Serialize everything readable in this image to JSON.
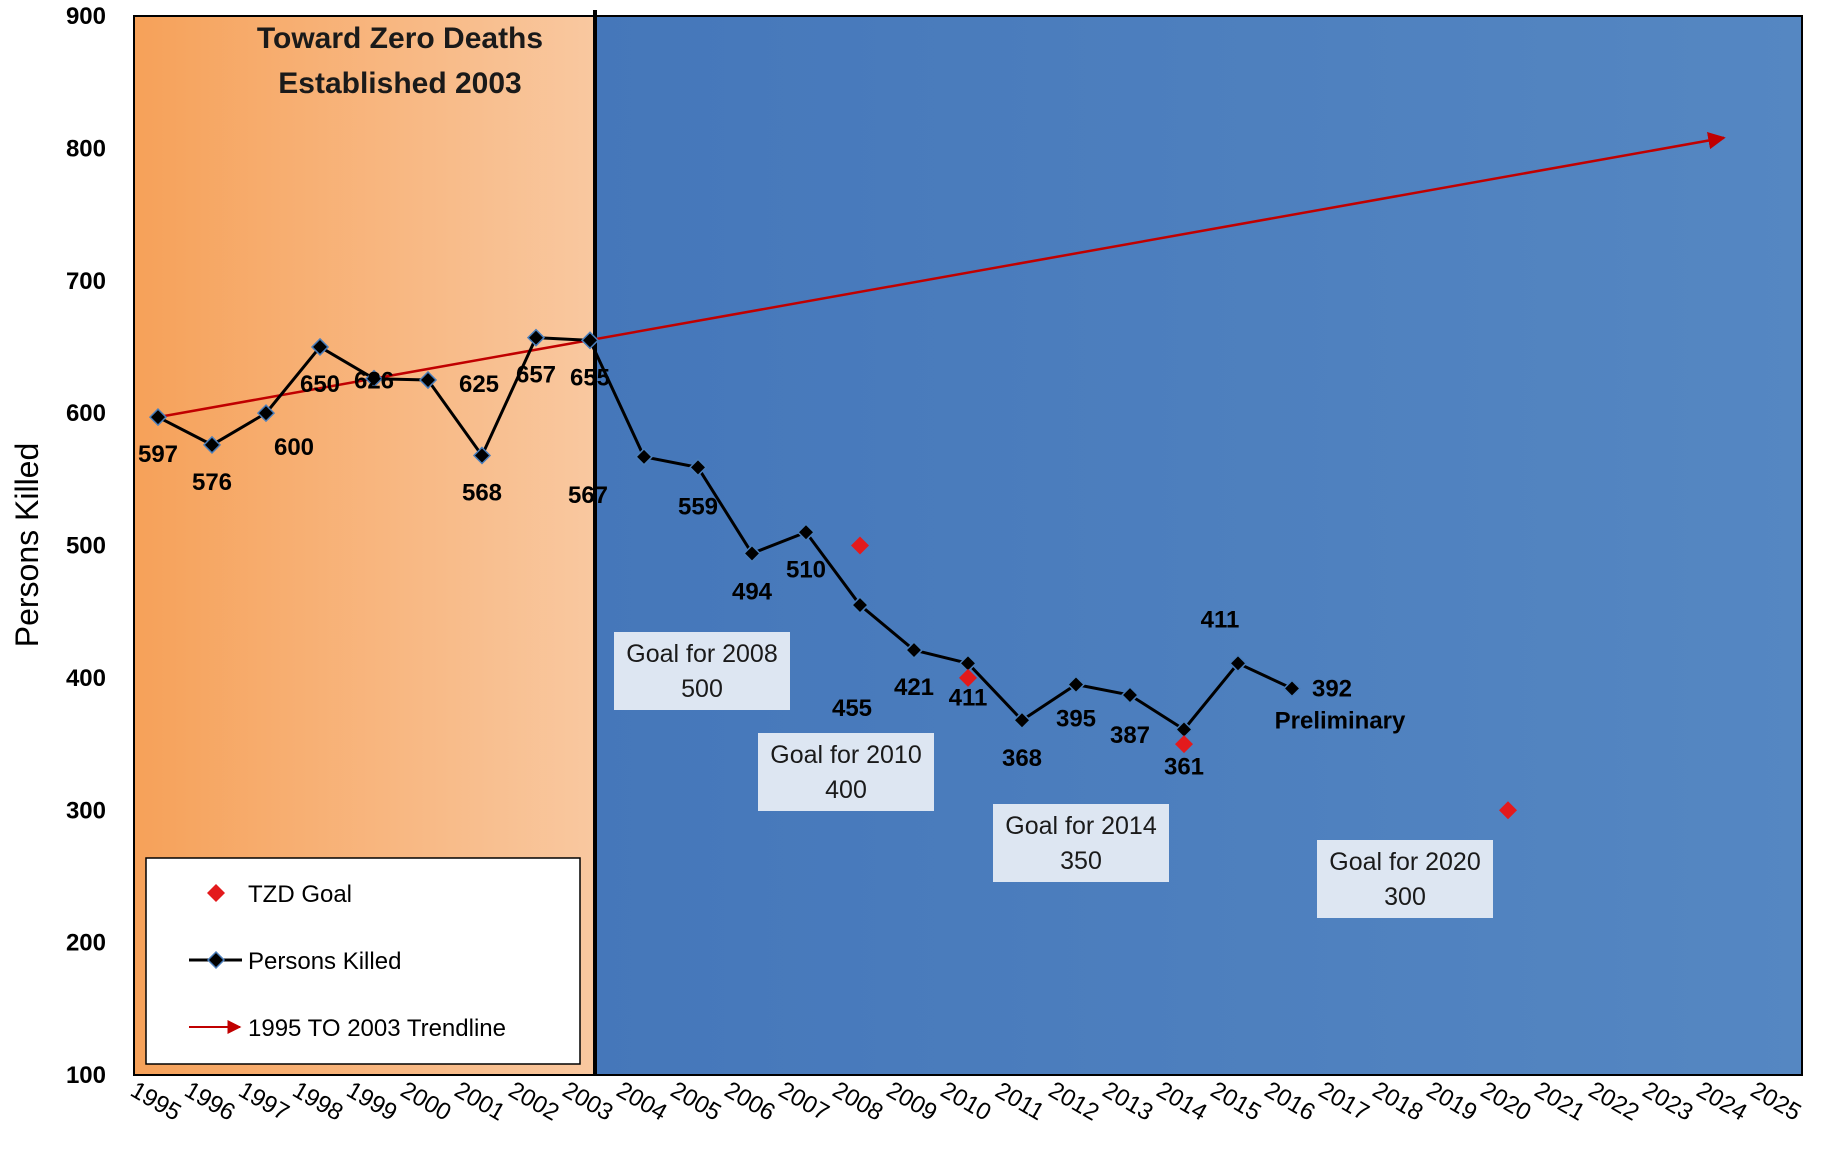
{
  "chart_data": {
    "type": "line",
    "ylabel": "Persons Killed",
    "xlabel": "",
    "ylim": [
      100,
      900
    ],
    "yticks": [
      100,
      200,
      300,
      400,
      500,
      600,
      700,
      800,
      900
    ],
    "x_categories": [
      "1995",
      "1996",
      "1997",
      "1998",
      "1999",
      "2000",
      "2001",
      "2002",
      "2003",
      "2004",
      "2005",
      "2006",
      "2007",
      "2008",
      "2009",
      "2010",
      "2011",
      "2012",
      "2013",
      "2014",
      "2015",
      "2016",
      "2017",
      "2018",
      "2019",
      "2020",
      "2021",
      "2022",
      "2023",
      "2024",
      "2025"
    ],
    "era_title_line1": "Toward Zero Deaths",
    "era_title_line2": "Established 2003",
    "era_boundary_year": "2003",
    "series": [
      {
        "name": "Persons Killed",
        "color": "#000000",
        "points": [
          {
            "x": "1995",
            "y": 597
          },
          {
            "x": "1996",
            "y": 576
          },
          {
            "x": "1997",
            "y": 600
          },
          {
            "x": "1998",
            "y": 650
          },
          {
            "x": "1999",
            "y": 626
          },
          {
            "x": "2000",
            "y": 625
          },
          {
            "x": "2001",
            "y": 568
          },
          {
            "x": "2002",
            "y": 657
          },
          {
            "x": "2003",
            "y": 655
          },
          {
            "x": "2004",
            "y": 567
          },
          {
            "x": "2005",
            "y": 559
          },
          {
            "x": "2006",
            "y": 494
          },
          {
            "x": "2007",
            "y": 510
          },
          {
            "x": "2008",
            "y": 455
          },
          {
            "x": "2009",
            "y": 421
          },
          {
            "x": "2010",
            "y": 411
          },
          {
            "x": "2011",
            "y": 368
          },
          {
            "x": "2012",
            "y": 395
          },
          {
            "x": "2013",
            "y": 387
          },
          {
            "x": "2014",
            "y": 361
          },
          {
            "x": "2015",
            "y": 411
          },
          {
            "x": "2016",
            "y": 392
          }
        ],
        "labels": [
          "597",
          "576",
          "600",
          "650",
          "626",
          "625",
          "568",
          "657",
          "655",
          "567",
          "559",
          "494",
          "510",
          "455",
          "421",
          "411",
          "368",
          "395",
          "387",
          "361",
          "411",
          "392"
        ],
        "last_point_note": "Preliminary"
      },
      {
        "name": "TZD Goal",
        "color": "#e31a1c",
        "points": [
          {
            "x": "2008",
            "y": 500
          },
          {
            "x": "2010",
            "y": 400
          },
          {
            "x": "2014",
            "y": 350
          },
          {
            "x": "2020",
            "y": 300
          }
        ]
      },
      {
        "name": "1995 TO 2003 Trendline",
        "color": "#c00000",
        "points": [
          {
            "x": "1995",
            "y": 597
          },
          {
            "x": "2024",
            "y": 808
          }
        ]
      }
    ],
    "goal_callouts": [
      {
        "year": "2008",
        "line1": "Goal for 2008",
        "line2": "500"
      },
      {
        "year": "2010",
        "line1": "Goal for 2010",
        "line2": "400"
      },
      {
        "year": "2014",
        "line1": "Goal for 2014",
        "line2": "350"
      },
      {
        "year": "2020",
        "line1": "Goal for 2020",
        "line2": "300"
      }
    ],
    "legend": {
      "placement": "bottom-left",
      "entries": [
        {
          "label": "TZD Goal",
          "icon": "red-diamond-icon"
        },
        {
          "label": "Persons Killed",
          "icon": "line-diamond-icon"
        },
        {
          "label": "1995 TO 2003 Trendline",
          "icon": "red-arrow-icon"
        }
      ]
    },
    "grid": false,
    "colors": {
      "pre_tzd_band": "#f4a460",
      "tzd_band": "#4a7ebb",
      "goal_box": "#dde6f2"
    }
  }
}
